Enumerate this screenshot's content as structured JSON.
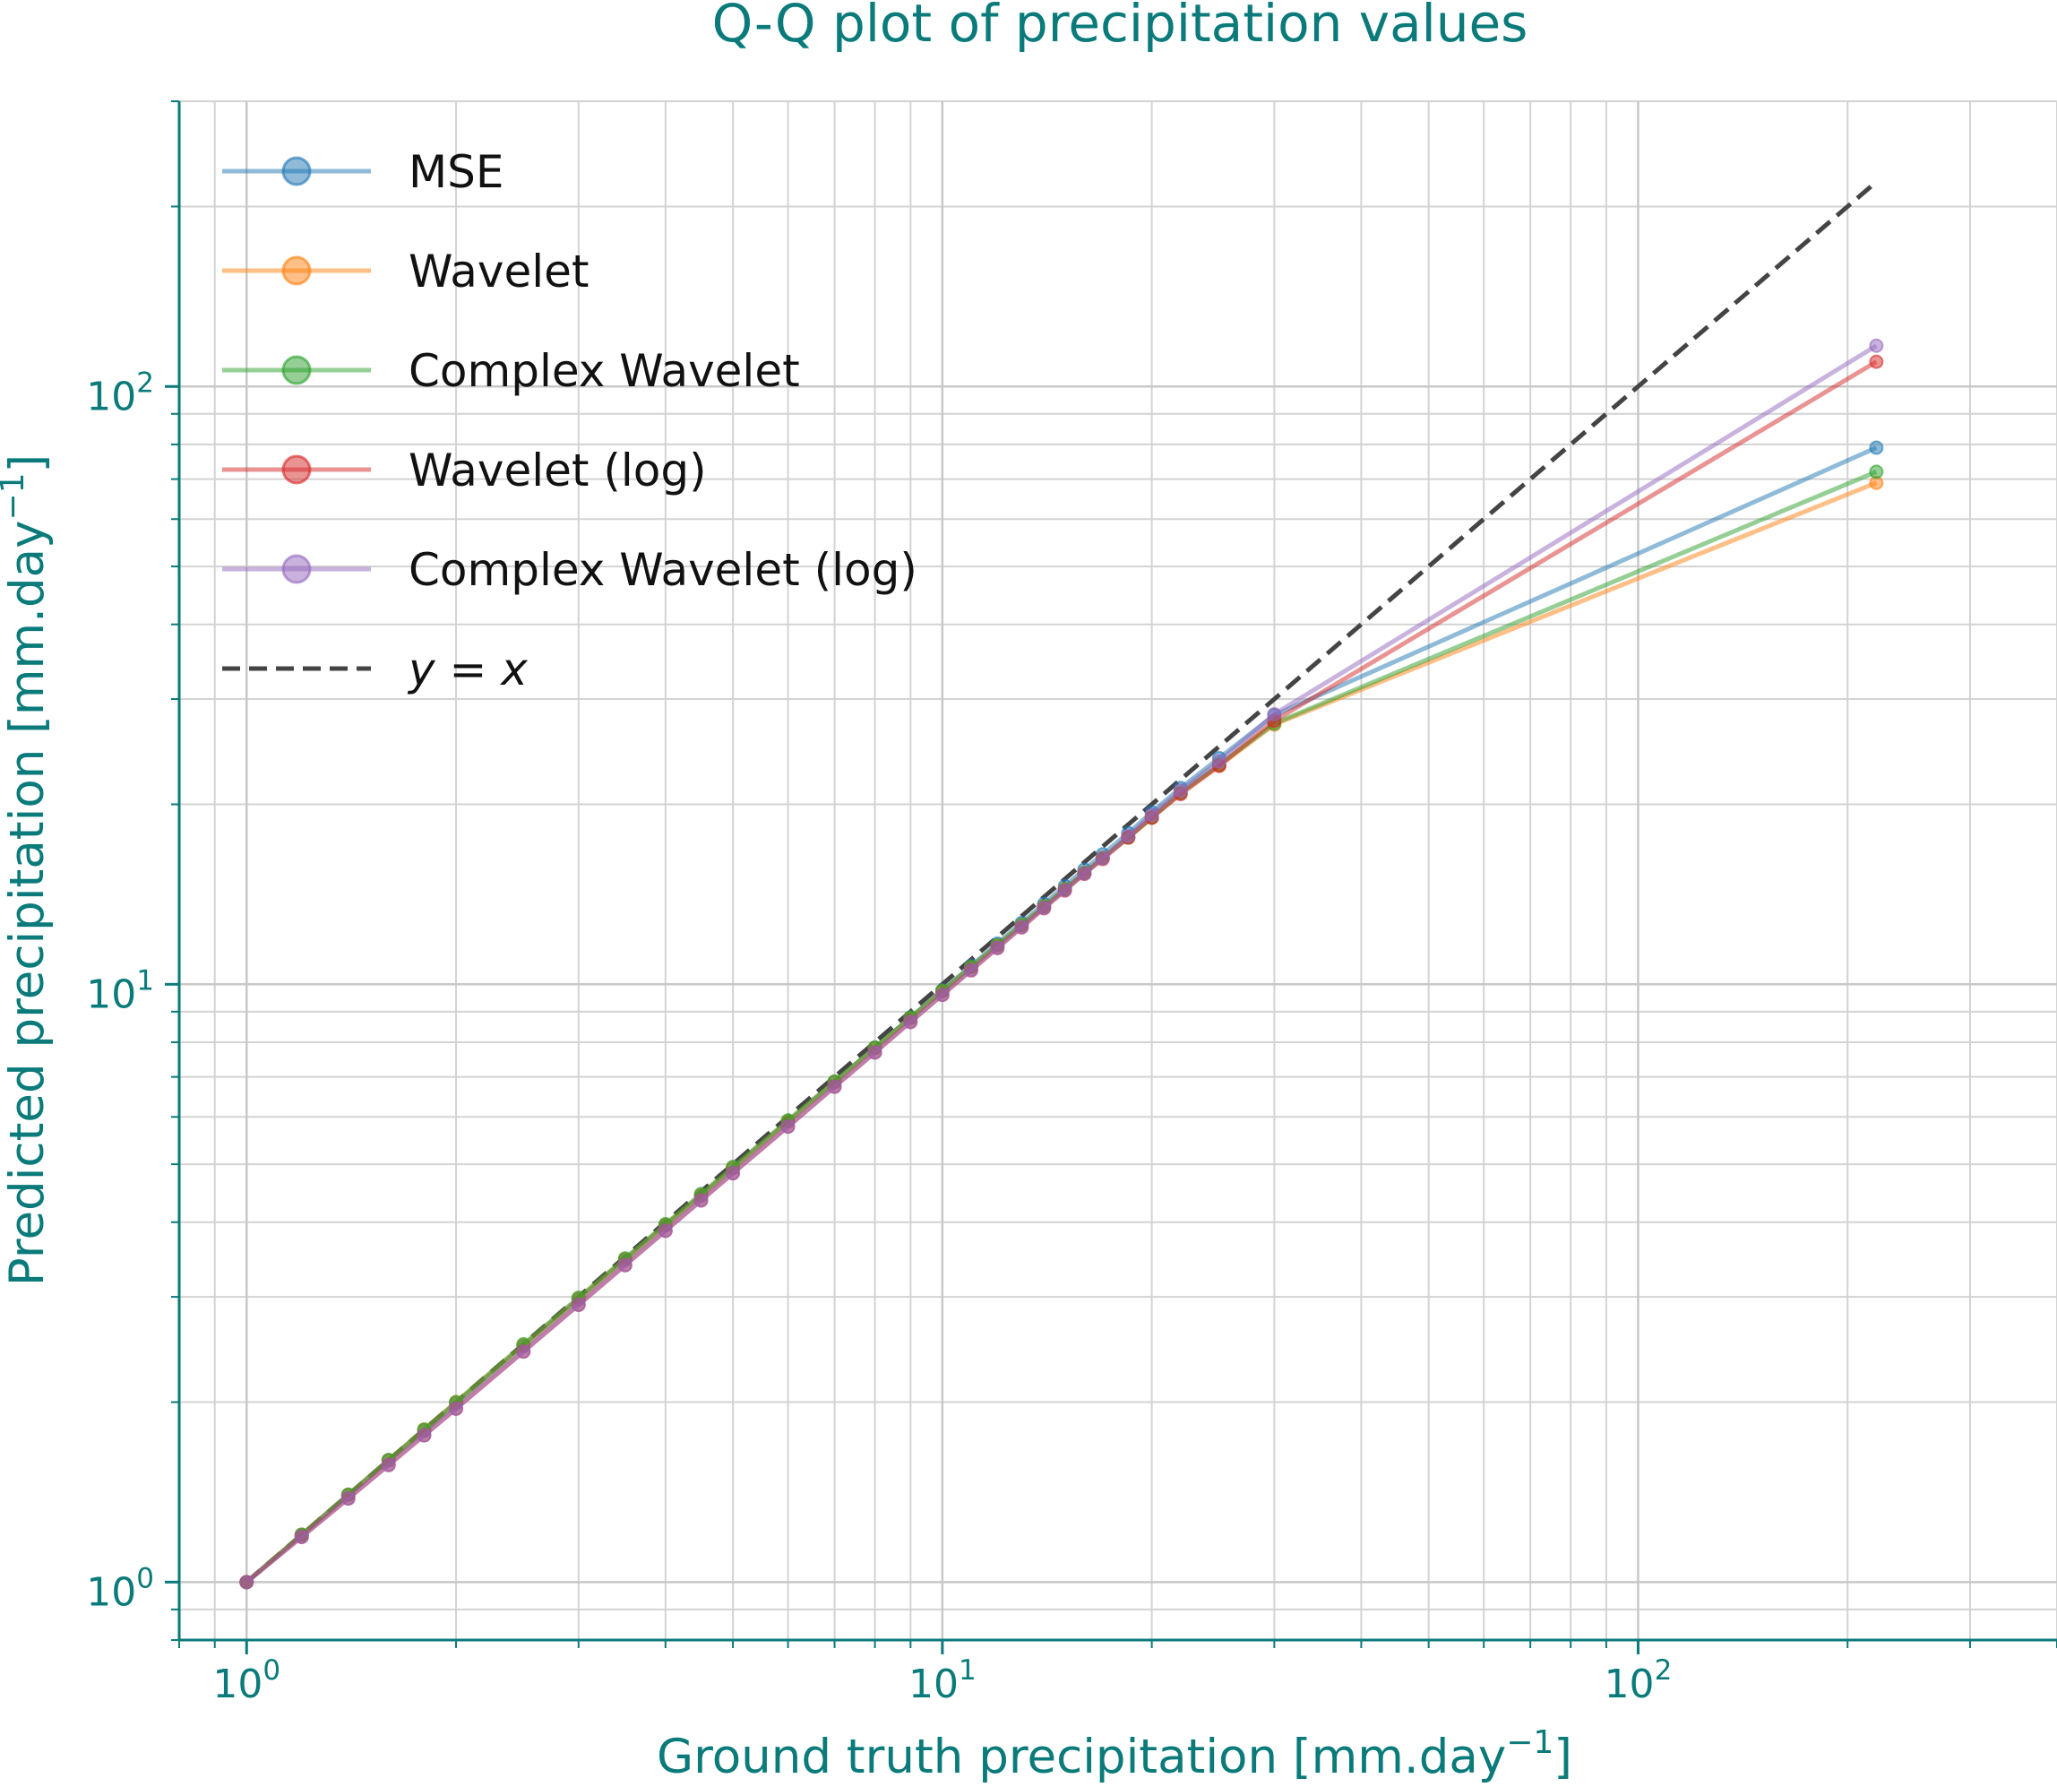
{
  "colors": {
    "accent": "#0a7a7a",
    "grid": "#d3d3d3",
    "reference": "#444444",
    "mse": "#1f77b4",
    "wavelet": "#ff7f0e",
    "complex_wavelet": "#2ca02c",
    "wavelet_log": "#d62728",
    "complex_wavelet_log": "#9467bd"
  },
  "chart_data": {
    "type": "line",
    "title": "Q-Q plot of precipitation values",
    "xlabel": "Ground truth precipitation [mm.day",
    "xlabel_sup": "−1",
    "xlabel_end": "]",
    "ylabel": "Predicted precipitation [mm.day",
    "ylabel_sup": "−1",
    "ylabel_end": "]",
    "xscale": "log",
    "yscale": "log",
    "xlim": [
      0.8,
      400
    ],
    "ylim": [
      0.8,
      300
    ],
    "x_ticks": [
      {
        "value": 1,
        "base": "10",
        "exp": "0"
      },
      {
        "value": 10,
        "base": "10",
        "exp": "1"
      },
      {
        "value": 100,
        "base": "10",
        "exp": "2"
      }
    ],
    "y_ticks": [
      {
        "value": 1,
        "base": "10",
        "exp": "0"
      },
      {
        "value": 10,
        "base": "10",
        "exp": "1"
      },
      {
        "value": 100,
        "base": "10",
        "exp": "2"
      }
    ],
    "grid": true,
    "legend_position": "top-left",
    "x": [
      1.0,
      1.2,
      1.4,
      1.6,
      1.8,
      2.0,
      2.5,
      3.0,
      3.5,
      4.0,
      4.5,
      5.0,
      6.0,
      7.0,
      8.0,
      9.0,
      10.0,
      11.0,
      12.0,
      13.0,
      14.0,
      15.0,
      16.0,
      17.0,
      18.5,
      20.0,
      22.0,
      25.0,
      30.0,
      220.0
    ],
    "series": [
      {
        "name": "MSE",
        "color": "#1f77b4",
        "values": [
          1.0,
          1.2,
          1.4,
          1.6,
          1.79,
          1.99,
          2.48,
          2.97,
          3.46,
          3.95,
          4.43,
          4.92,
          5.89,
          6.86,
          7.83,
          8.8,
          9.77,
          10.74,
          11.7,
          12.67,
          13.63,
          14.6,
          15.56,
          16.5,
          17.9,
          19.4,
          21.3,
          23.9,
          28.2,
          79.0
        ]
      },
      {
        "name": "Wavelet",
        "color": "#ff7f0e",
        "values": [
          1.0,
          1.2,
          1.4,
          1.6,
          1.8,
          2.0,
          2.49,
          2.98,
          3.47,
          3.96,
          4.44,
          4.93,
          5.9,
          6.86,
          7.82,
          8.78,
          9.74,
          10.68,
          11.62,
          12.56,
          13.5,
          14.43,
          15.36,
          16.28,
          17.6,
          19.0,
          20.9,
          23.2,
          27.2,
          69.0
        ]
      },
      {
        "name": "Complex Wavelet",
        "color": "#2ca02c",
        "values": [
          1.0,
          1.2,
          1.4,
          1.6,
          1.8,
          2.0,
          2.5,
          2.99,
          3.48,
          3.97,
          4.46,
          4.95,
          5.92,
          6.88,
          7.84,
          8.8,
          9.75,
          10.69,
          11.63,
          12.57,
          13.5,
          14.43,
          15.36,
          16.28,
          17.6,
          19.0,
          20.9,
          23.3,
          27.3,
          72.0
        ]
      },
      {
        "name": "Wavelet (log)",
        "color": "#d62728",
        "values": [
          1.0,
          1.19,
          1.38,
          1.57,
          1.76,
          1.95,
          2.43,
          2.91,
          3.39,
          3.87,
          4.35,
          4.83,
          5.78,
          6.74,
          7.69,
          8.65,
          9.6,
          10.55,
          11.5,
          12.45,
          13.4,
          14.35,
          15.3,
          16.2,
          17.6,
          19.0,
          20.8,
          23.2,
          27.6,
          110.0
        ]
      },
      {
        "name": "Complex Wavelet (log)",
        "color": "#9467bd",
        "values": [
          1.0,
          1.19,
          1.38,
          1.57,
          1.76,
          1.95,
          2.43,
          2.91,
          3.39,
          3.87,
          4.35,
          4.83,
          5.78,
          6.74,
          7.69,
          8.65,
          9.6,
          10.56,
          11.51,
          12.46,
          13.42,
          14.37,
          15.32,
          16.25,
          17.7,
          19.2,
          21.1,
          23.6,
          28.3,
          117.0
        ]
      }
    ],
    "reference": {
      "name_prefix": "y",
      "name_eq": " = ",
      "name_var": "x",
      "x_range": [
        1.0,
        220.0
      ]
    }
  }
}
